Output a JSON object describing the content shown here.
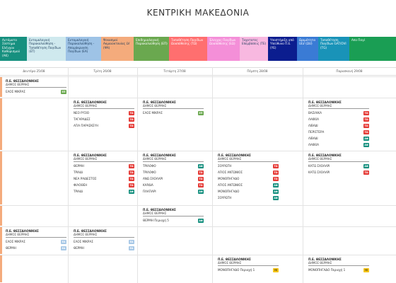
{
  "page": {
    "title": "ΚΕΝΤΡΙΚΗ ΜΑΚΕΔΟΝΙΑ"
  },
  "legend": [
    {
      "text": "Αυτόματο Σύστημα Ελέγχου Καθορισμού (ΑΚ)",
      "color": "#16907f"
    },
    {
      "text": "Εντομολογική Παρακολούθηση - Τοποθέτηση Παγίδων (ΕΤ)",
      "color": "#cfe9ee"
    },
    {
      "text": "Εντομολογική Παρακολούθηση - Απομάκρυνση Παγίδων (ΕΑ)",
      "color": "#9ec3e6"
    },
    {
      "text": "Ψεκασμοί Ακμαιοκτονίας LV (ΨΑ)",
      "color": "#f4ab7c"
    },
    {
      "text": "Επιδημιολογική Παρακολούθηση (ΕΠ)",
      "color": "#6aa84f"
    },
    {
      "text": "Τοποθέτηση Παγίδων Ωοαπόθεσης (ΤΩ)",
      "color": "#ff6f6f"
    },
    {
      "text": "Έλεγχος Παγίδων Ωοαπόθεσης (ΕΩ)",
      "color": "#f48fd8"
    },
    {
      "text": "Ταχυτατες Επεμβάσεις (ΤΕ)",
      "color": "#f8b8e0"
    },
    {
      "text": "Υποστήριξη από Υπεύθυνο Π.Ε. (ΥΕ)",
      "color": "#0b1d8f"
    },
    {
      "text": "Ωριμότητα ULV (ΩU)",
      "color": "#3a7bd5"
    },
    {
      "text": "Τοποθέτηση Παγίδων GAT/OVI (ΤG)",
      "color": "#1993b8"
    },
    {
      "text": "Απο Παγί",
      "color": "#1a9e54"
    }
  ],
  "days": [
    "Δευτέρα 25/08",
    "Τρίτη 26/08",
    "Τετάρτη 27/08",
    "Πέμπτη 28/08",
    "Παρασκευή 29/08"
  ],
  "tag_colors": {
    "ΕΠ": "#6aa84f",
    "ΤΩ": "#e53935",
    "ΑΦ": "#16907f",
    "ΕΑ": "#a7c8e6",
    "ΥΕ": "#f5c518"
  },
  "blocks": [
    {
      "row": 0,
      "day": 0,
      "title": "Π.Ε. ΘΕΣΣΑΛΟΝΙΚΗΣ",
      "sub": "ΔΗΜΟΣ ΘΕΡΜΗΣ",
      "items": [
        {
          "name": "ΕΛΟΣ ΜΙΚΡΑΣ",
          "tag": "ΕΠ"
        }
      ]
    },
    {
      "row": 1,
      "day": 1,
      "title": "Π.Ε. ΘΕΣΣΑΛΟΝΙΚΗΣ",
      "sub": "ΔΗΜΟΣ ΘΕΡΜΗΣ",
      "items": [
        {
          "name": "ΝΕΟ ΡΥΣΙΟ",
          "tag": "ΤΩ"
        },
        {
          "name": "ΤΑΓΑΡΑΔΕΣ",
          "tag": "ΤΩ"
        },
        {
          "name": "ΑΓΙΑ ΠΑΡΑΣΚΕΥΗ",
          "tag": "ΤΩ"
        }
      ]
    },
    {
      "row": 1,
      "day": 2,
      "title": "Π.Ε. ΘΕΣΣΑΛΟΝΙΚΗΣ",
      "sub": "ΔΗΜΟΣ ΘΕΡΜΗΣ",
      "items": [
        {
          "name": "ΕΛΟΣ ΜΙΚΡΑΣ",
          "tag": "ΕΠ"
        }
      ]
    },
    {
      "row": 1,
      "day": 4,
      "title": "Π.Ε. ΘΕΣΣΑΛΟΝΙΚΗΣ",
      "sub": "ΔΗΜΟΣ ΘΕΡΜΗΣ",
      "items": [
        {
          "name": "ΒΑΣΙΛΙΚΑ",
          "tag": "ΤΩ"
        },
        {
          "name": "ΛΑΚΚΙΑ",
          "tag": "ΤΩ"
        },
        {
          "name": "ΛΙΒΑΔΙ",
          "tag": "ΤΩ"
        },
        {
          "name": "ΠΕΡΙΣΤΕΡΑ",
          "tag": "ΤΩ"
        },
        {
          "name": "ΛΙΒΑΔΙ",
          "tag": "ΑΦ"
        },
        {
          "name": "ΛΑΚΚΙΑ",
          "tag": "ΑΦ"
        }
      ]
    },
    {
      "row": 2,
      "day": 1,
      "title": "Π.Ε. ΘΕΣΣΑΛΟΝΙΚΗΣ",
      "sub": "ΔΗΜΟΣ ΘΕΡΜΗΣ",
      "items": [
        {
          "name": "ΘΕΡΜΗ",
          "tag": "ΤΩ"
        },
        {
          "name": "ΤΡΙΑΔΙ",
          "tag": "ΤΩ"
        },
        {
          "name": "ΝΕΑ ΡΑΙΔΕΣΤΟΣ",
          "tag": "ΤΩ"
        },
        {
          "name": "ΦΙΛΟΘΕΗ",
          "tag": "ΤΩ"
        },
        {
          "name": "ΤΡΙΑΔΙ",
          "tag": "ΑΦ"
        }
      ]
    },
    {
      "row": 2,
      "day": 2,
      "title": "Π.Ε. ΘΕΣΣΑΛΟΝΙΚΗΣ",
      "sub": "ΔΗΜΟΣ ΘΕΡΜΗΣ",
      "items": [
        {
          "name": "ΤΡΙΛΟΦΟ",
          "tag": "ΑΦ"
        },
        {
          "name": "ΤΡΙΛΟΦΟ",
          "tag": "ΤΩ"
        },
        {
          "name": "ΑΝΩ ΣΧΟΛΑΡΙ",
          "tag": "ΤΩ"
        },
        {
          "name": "ΚΑΡΔΙΑ",
          "tag": "ΤΩ"
        },
        {
          "name": "ΠΛΑΓΙΑΡΙ",
          "tag": "ΑΦ"
        }
      ]
    },
    {
      "row": 2,
      "day": 3,
      "title": "Π.Ε. ΘΕΣΣΑΛΟΝΙΚΗΣ",
      "sub": "ΔΗΜΟΣ ΘΕΡΜΗΣ",
      "items": [
        {
          "name": "ΣΟΥΡΩΤΗ",
          "tag": "ΤΩ"
        },
        {
          "name": "ΑΓΙΟΣ ΑΝΤΩΝΙΟΣ",
          "tag": "ΤΩ"
        },
        {
          "name": "ΜΟΝΟΠΗΓΑΔΟ",
          "tag": "ΤΩ"
        },
        {
          "name": "ΑΓΙΟΣ ΑΝΤΩΝΙΟΣ",
          "tag": "ΑΦ"
        },
        {
          "name": "ΜΟΝΟΠΗΓΑΔΟ",
          "tag": "ΑΦ"
        },
        {
          "name": "ΣΟΥΡΩΤΗ",
          "tag": "ΑΦ"
        }
      ]
    },
    {
      "row": 2,
      "day": 4,
      "title": "Π.Ε. ΘΕΣΣΑΛΟΝΙΚΗΣ",
      "sub": "ΔΗΜΟΣ ΘΕΡΜΗΣ",
      "items": [
        {
          "name": "ΚΑΤΩ ΣΧΟΛΑΡΙ",
          "tag": "ΑΦ"
        },
        {
          "name": "ΚΑΤΩ ΣΧΟΛΑΡΙ",
          "tag": "ΤΩ"
        }
      ]
    },
    {
      "row": 3,
      "day": 2,
      "title": "Π.Ε. ΘΕΣΣΑΛΟΝΙΚΗΣ",
      "sub": "ΔΗΜΟΣ ΘΕΡΜΗΣ",
      "items": [
        {
          "name": "ΘΕΡΜΗ Περιοχή 5",
          "tag": "ΑΦ"
        }
      ]
    },
    {
      "row": 4,
      "day": 0,
      "title": "Π.Ε. ΘΕΣΣΑΛΟΝΙΚΗΣ",
      "sub": "ΔΗΜΟΣ ΘΕΡΜΗΣ",
      "items": [
        {
          "name": "ΕΛΟΣ ΜΙΚΡΑΣ",
          "tag": "ΕΑ"
        },
        {
          "name": "ΘΕΡΜΗ",
          "tag": "ΕΑ"
        }
      ]
    },
    {
      "row": 4,
      "day": 1,
      "title": "Π.Ε. ΘΕΣΣΑΛΟΝΙΚΗΣ",
      "sub": "ΔΗΜΟΣ ΘΕΡΜΗΣ",
      "items": [
        {
          "name": "ΕΛΟΣ ΜΙΚΡΑΣ",
          "tag": "ΕΑ"
        },
        {
          "name": "ΘΕΡΜΗ",
          "tag": "ΕΑ"
        }
      ]
    },
    {
      "row": 5,
      "day": 3,
      "title": "Π.Ε. ΘΕΣΣΑΛΟΝΙΚΗΣ",
      "sub": "ΔΗΜΟΣ ΘΕΡΜΗΣ",
      "items": [
        {
          "name": "ΜΟΝΟΠΗΓΑΔΟ Περιοχή 1",
          "tag": "ΥΕ"
        }
      ]
    },
    {
      "row": 5,
      "day": 4,
      "title": "Π.Ε. ΘΕΣΣΑΛΟΝΙΚΗΣ",
      "sub": "ΔΗΜΟΣ ΘΕΡΜΗΣ",
      "items": [
        {
          "name": "ΜΟΝΟΠΗΓΑΔΟ Περιοχή 1",
          "tag": "ΥΕ"
        }
      ]
    }
  ]
}
